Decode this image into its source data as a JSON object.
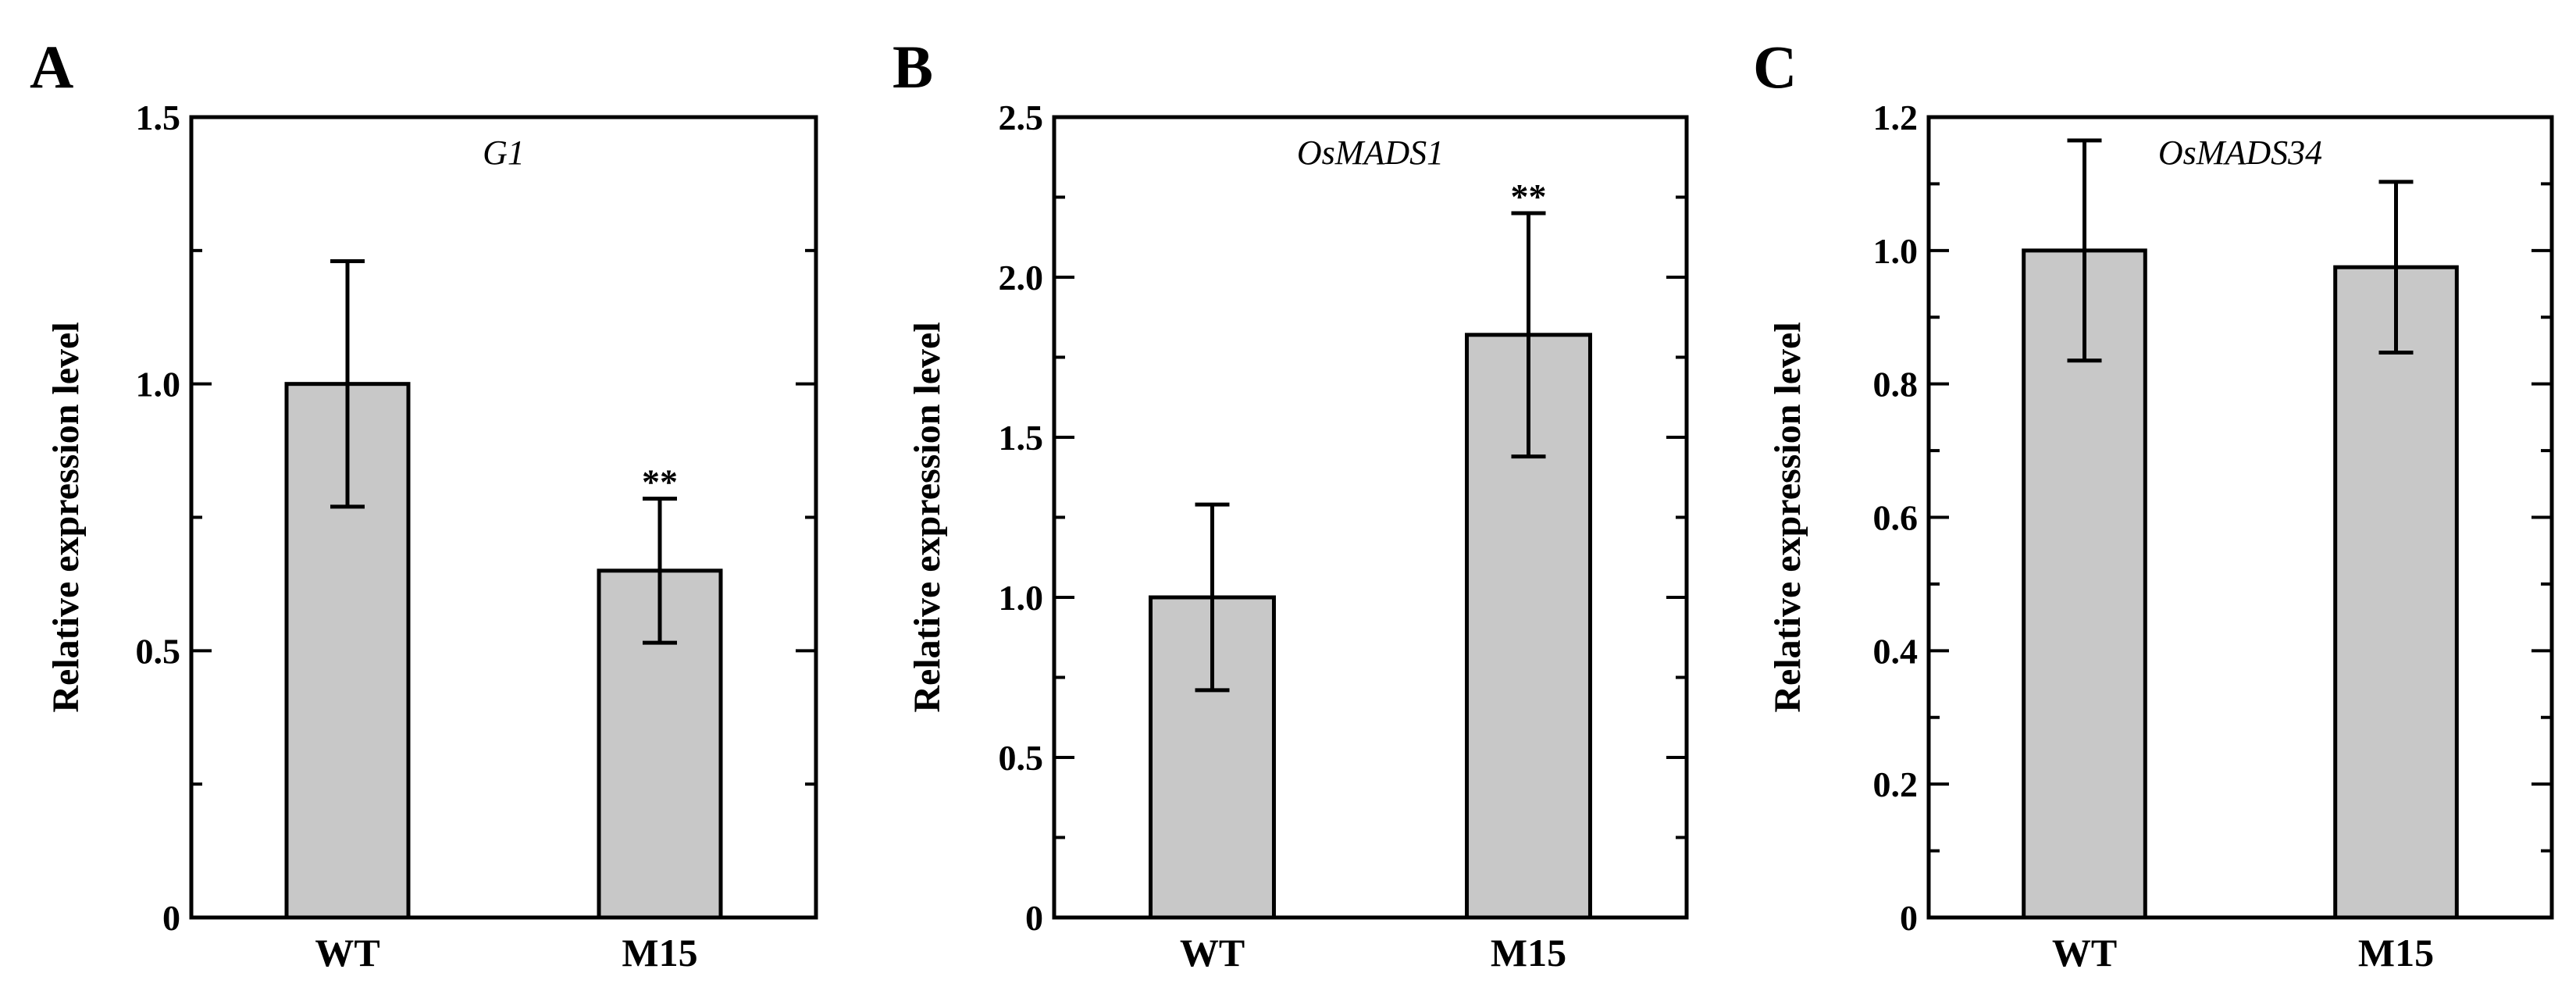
{
  "chart_data": [
    {
      "type": "bar",
      "panel": "A",
      "title": "G1",
      "ylabel": "Relative expression level",
      "xlabel": "",
      "categories": [
        "WT",
        "M15"
      ],
      "values": [
        1.0,
        0.65
      ],
      "errors": [
        0.23,
        0.135
      ],
      "significance": [
        "",
        "**"
      ],
      "ylim": [
        0,
        1.5
      ],
      "yticks": [
        0,
        0.5,
        1.0,
        1.5
      ],
      "ytick_labels": [
        "0",
        "0.5",
        "1.0",
        "1.5"
      ],
      "minor_step": 0.25,
      "grid": false,
      "bar_color": "#c8c8c8"
    },
    {
      "type": "bar",
      "panel": "B",
      "title": "OsMADS1",
      "ylabel": "Relative expression level",
      "xlabel": "",
      "categories": [
        "WT",
        "M15"
      ],
      "values": [
        1.0,
        1.82
      ],
      "errors": [
        0.29,
        0.38
      ],
      "significance": [
        "",
        "**"
      ],
      "ylim": [
        0,
        2.5
      ],
      "yticks": [
        0,
        0.5,
        1.0,
        1.5,
        2.0,
        2.5
      ],
      "ytick_labels": [
        "0",
        "0.5",
        "1.0",
        "1.5",
        "2.0",
        "2.5"
      ],
      "minor_step": 0.25,
      "grid": false,
      "bar_color": "#c8c8c8"
    },
    {
      "type": "bar",
      "panel": "C",
      "title": "OsMADS34",
      "ylabel": "Relative expression level",
      "xlabel": "",
      "categories": [
        "WT",
        "M15"
      ],
      "values": [
        1.0,
        0.975
      ],
      "errors": [
        0.165,
        0.128
      ],
      "significance": [
        "",
        ""
      ],
      "ylim": [
        0,
        1.2
      ],
      "yticks": [
        0,
        0.2,
        0.4,
        0.6,
        0.8,
        1.0,
        1.2
      ],
      "ytick_labels": [
        "0",
        "0.2",
        "0.4",
        "0.6",
        "0.8",
        "1.0",
        "1.2"
      ],
      "minor_step": 0.1,
      "grid": false,
      "bar_color": "#c8c8c8"
    }
  ]
}
